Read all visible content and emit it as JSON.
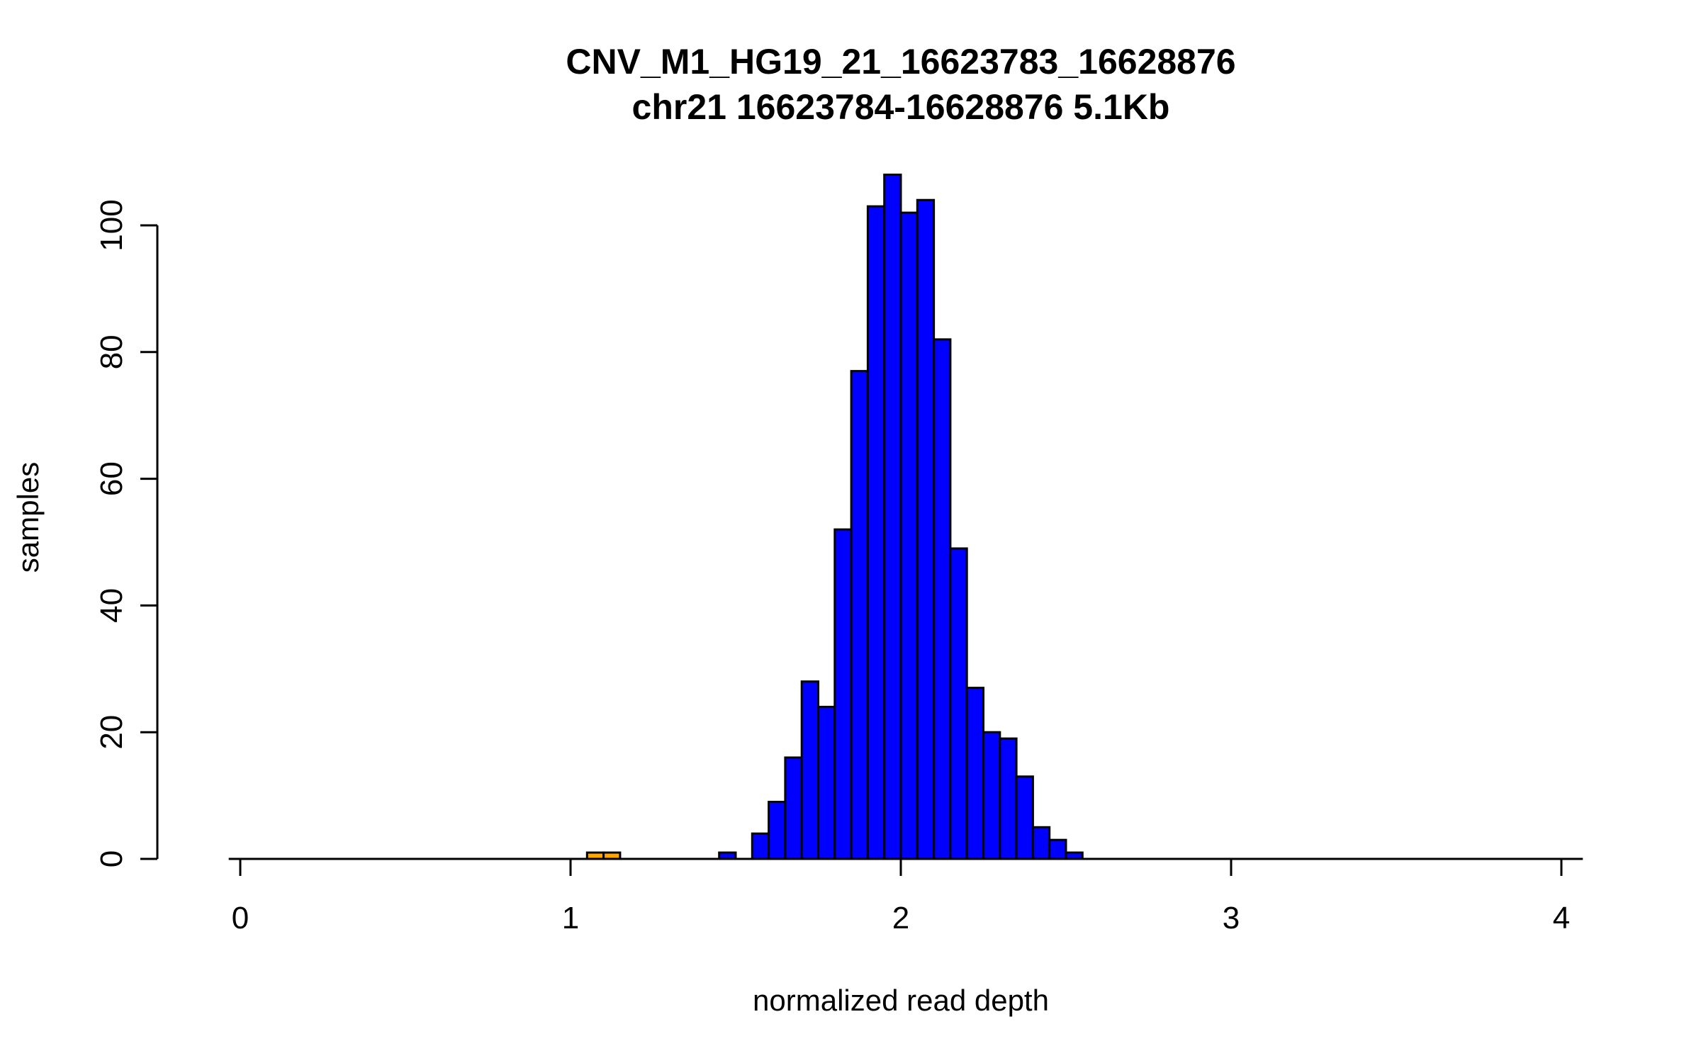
{
  "chart_data": {
    "type": "bar",
    "subtype": "histogram",
    "title": "CNV_M1_HG19_21_16623783_16628876",
    "subtitle": "chr21 16623784-16628876 5.1Kb",
    "xlabel": "normalized read depth",
    "ylabel": "samples",
    "xlim": [
      0,
      4
    ],
    "ylim": [
      0,
      108
    ],
    "x_ticks": [
      0,
      1,
      2,
      3,
      4
    ],
    "y_ticks": [
      0,
      20,
      40,
      60,
      80,
      100
    ],
    "bin_width": 0.05,
    "grid": false,
    "legend": "none",
    "colors": {
      "default": "#0000FF",
      "highlight": "#FFA500",
      "stroke": "#000000"
    },
    "bins": [
      {
        "x": 1.05,
        "count": 1,
        "color": "highlight"
      },
      {
        "x": 1.1,
        "count": 1,
        "color": "highlight"
      },
      {
        "x": 1.45,
        "count": 1,
        "color": "default"
      },
      {
        "x": 1.55,
        "count": 4,
        "color": "default"
      },
      {
        "x": 1.6,
        "count": 9,
        "color": "default"
      },
      {
        "x": 1.65,
        "count": 16,
        "color": "default"
      },
      {
        "x": 1.7,
        "count": 28,
        "color": "default"
      },
      {
        "x": 1.75,
        "count": 24,
        "color": "default"
      },
      {
        "x": 1.8,
        "count": 52,
        "color": "default"
      },
      {
        "x": 1.85,
        "count": 77,
        "color": "default"
      },
      {
        "x": 1.9,
        "count": 103,
        "color": "default"
      },
      {
        "x": 1.95,
        "count": 108,
        "color": "default"
      },
      {
        "x": 2.0,
        "count": 102,
        "color": "default"
      },
      {
        "x": 2.05,
        "count": 104,
        "color": "default"
      },
      {
        "x": 2.1,
        "count": 82,
        "color": "default"
      },
      {
        "x": 2.15,
        "count": 49,
        "color": "default"
      },
      {
        "x": 2.2,
        "count": 27,
        "color": "default"
      },
      {
        "x": 2.25,
        "count": 20,
        "color": "default"
      },
      {
        "x": 2.3,
        "count": 19,
        "color": "default"
      },
      {
        "x": 2.35,
        "count": 13,
        "color": "default"
      },
      {
        "x": 2.4,
        "count": 5,
        "color": "default"
      },
      {
        "x": 2.45,
        "count": 3,
        "color": "default"
      },
      {
        "x": 2.5,
        "count": 1,
        "color": "default"
      }
    ]
  }
}
